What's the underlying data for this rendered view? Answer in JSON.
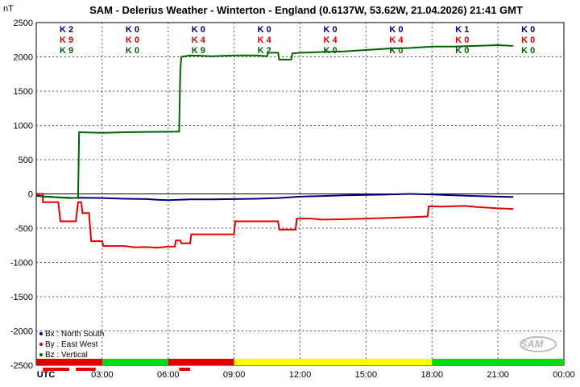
{
  "chart_data": {
    "type": "line",
    "title": "SAM - Delerius Weather - Winterton - England (0.6137W, 53.62W, 21.04.2026)  21:41 GMT",
    "ylabel": "nT",
    "ylim": [
      -2500,
      2500
    ],
    "yticks": [
      "2500",
      "2000",
      "1500",
      "1000",
      "500",
      "0",
      "-500",
      "-1000",
      "-1500",
      "-2000",
      "-2500"
    ],
    "xlim": [
      0,
      24
    ],
    "xticks": [
      "UTC",
      "03:00",
      "06:00",
      "09:00",
      "12:00",
      "15:00",
      "18:00",
      "21:00",
      "00:00"
    ],
    "grid": true,
    "legend_position": "bottom-left",
    "series": [
      {
        "name": "Bx : North South",
        "color": "#000080",
        "points": [
          [
            0,
            -20
          ],
          [
            0.4,
            -40
          ],
          [
            1,
            -50
          ],
          [
            1.5,
            -60
          ],
          [
            2,
            -55
          ],
          [
            3,
            -60
          ],
          [
            4,
            -70
          ],
          [
            5,
            -75
          ],
          [
            5.5,
            -85
          ],
          [
            6,
            -90
          ],
          [
            6.5,
            -85
          ],
          [
            7,
            -80
          ],
          [
            8,
            -80
          ],
          [
            9,
            -75
          ],
          [
            10,
            -70
          ],
          [
            11,
            -60
          ],
          [
            12,
            -40
          ],
          [
            13,
            -30
          ],
          [
            14,
            -20
          ],
          [
            15,
            -15
          ],
          [
            16,
            -10
          ],
          [
            17,
            0
          ],
          [
            18,
            -10
          ],
          [
            19,
            -20
          ],
          [
            20,
            -30
          ],
          [
            21,
            -40
          ],
          [
            21.7,
            -45
          ]
        ]
      },
      {
        "name": "By : East West",
        "color": "#e00000",
        "points": [
          [
            0,
            0
          ],
          [
            0.3,
            0
          ],
          [
            0.3,
            -120
          ],
          [
            1,
            -120
          ],
          [
            1.1,
            -400
          ],
          [
            1.8,
            -400
          ],
          [
            1.9,
            -120
          ],
          [
            2.05,
            -120
          ],
          [
            2.1,
            -280
          ],
          [
            2.4,
            -280
          ],
          [
            2.5,
            -690
          ],
          [
            3,
            -690
          ],
          [
            3.05,
            -760
          ],
          [
            4,
            -760
          ],
          [
            4.5,
            -780
          ],
          [
            5,
            -775
          ],
          [
            5.5,
            -785
          ],
          [
            6,
            -770
          ],
          [
            6.3,
            -770
          ],
          [
            6.35,
            -680
          ],
          [
            6.55,
            -680
          ],
          [
            6.6,
            -720
          ],
          [
            7,
            -720
          ],
          [
            7.05,
            -590
          ],
          [
            8,
            -590
          ],
          [
            9,
            -590
          ],
          [
            9.05,
            -400
          ],
          [
            10,
            -400
          ],
          [
            11,
            -400
          ],
          [
            11.05,
            -520
          ],
          [
            11.8,
            -520
          ],
          [
            11.85,
            -360
          ],
          [
            12.5,
            -360
          ],
          [
            13,
            -375
          ],
          [
            14,
            -370
          ],
          [
            15,
            -360
          ],
          [
            16,
            -350
          ],
          [
            17,
            -340
          ],
          [
            17.8,
            -330
          ],
          [
            17.85,
            -180
          ],
          [
            18.5,
            -185
          ],
          [
            19,
            -180
          ],
          [
            19.5,
            -175
          ],
          [
            20,
            -190
          ],
          [
            20.5,
            -200
          ],
          [
            21,
            -210
          ],
          [
            21.7,
            -220
          ]
        ]
      },
      {
        "name": "Bz : Vertical",
        "color": "#006400",
        "points": [
          [
            0,
            -30
          ],
          [
            1,
            -50
          ],
          [
            1.9,
            -60
          ],
          [
            1.95,
            900
          ],
          [
            3,
            890
          ],
          [
            4,
            900
          ],
          [
            5,
            905
          ],
          [
            6.5,
            910
          ],
          [
            6.55,
            1800
          ],
          [
            6.6,
            2000
          ],
          [
            7,
            2020
          ],
          [
            8,
            2010
          ],
          [
            9,
            2020
          ],
          [
            10,
            2020
          ],
          [
            10.5,
            2010
          ],
          [
            10.55,
            2060
          ],
          [
            11,
            2060
          ],
          [
            11.05,
            1960
          ],
          [
            11.6,
            1960
          ],
          [
            11.65,
            2050
          ],
          [
            12,
            2060
          ],
          [
            13,
            2070
          ],
          [
            14,
            2080
          ],
          [
            15,
            2100
          ],
          [
            16,
            2120
          ],
          [
            17,
            2130
          ],
          [
            17.5,
            2140
          ],
          [
            18,
            2150
          ],
          [
            19,
            2150
          ],
          [
            20,
            2160
          ],
          [
            21,
            2170
          ],
          [
            21.7,
            2160
          ]
        ]
      }
    ],
    "k_index": {
      "Bx": [
        "K 2",
        "K 0",
        "K 0",
        "K 0",
        "K 0",
        "K 0",
        "K 1",
        "K 0"
      ],
      "By": [
        "K 9",
        "K 0",
        "K 4",
        "K 4",
        "K 4",
        "K 4",
        "K 0",
        "K 0"
      ],
      "Bz": [
        "K 9",
        "K 0",
        "K 9",
        "K 2",
        "K 0",
        "K 0",
        "K 0",
        "K 0"
      ]
    },
    "status_bar": [
      "#e00000",
      "#00dd00",
      "#e00000",
      "#ffff00",
      "#ffff00",
      "#ffff00",
      "#00dd00",
      "#00dd00"
    ],
    "watermark": "SAM"
  },
  "colors": {
    "bx": "#000080",
    "by": "#e00000",
    "bz": "#006400"
  }
}
